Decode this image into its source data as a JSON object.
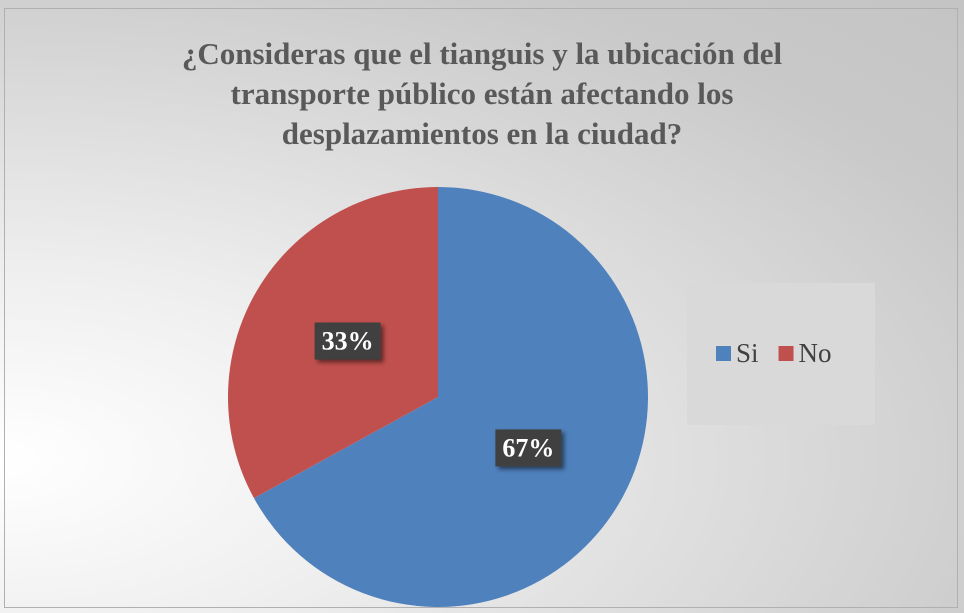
{
  "chart_data": {
    "type": "pie",
    "title": "¿Consideras que el tianguis y la ubicación del transporte público están afectando los desplazamientos en la ciudad?",
    "categories": [
      "Si",
      "No"
    ],
    "values": [
      67,
      33
    ],
    "value_labels": [
      "67%",
      "33%"
    ],
    "colors": [
      "#4f81bd",
      "#c0504d"
    ],
    "legend": "right"
  }
}
